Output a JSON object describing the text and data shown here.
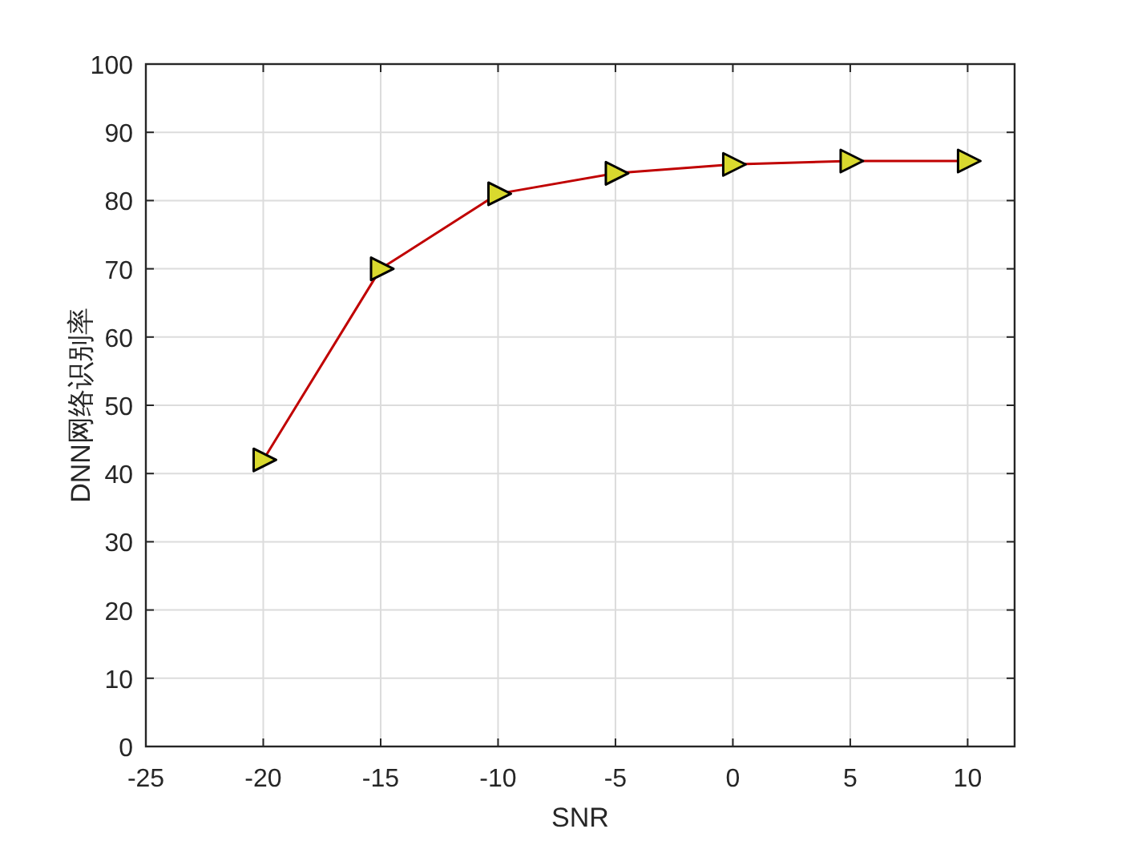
{
  "chart_data": {
    "type": "line",
    "xlabel": "SNR",
    "ylabel": "DNN网络识别率",
    "x": [
      -20,
      -15,
      -10,
      -5,
      0,
      5,
      10
    ],
    "series": [
      {
        "color": "#c00000",
        "values": [
          42,
          70,
          81,
          84,
          85.3,
          85.8,
          85.8
        ]
      }
    ],
    "xlim": [
      -25,
      12
    ],
    "xticks": [
      -25,
      -20,
      -15,
      -10,
      -5,
      0,
      5,
      10
    ],
    "ylim": [
      0,
      100
    ],
    "yticks": [
      0,
      10,
      20,
      30,
      40,
      50,
      60,
      70,
      80,
      90,
      100
    ],
    "grid": true,
    "marker": "triangle",
    "line_style": "solid"
  }
}
